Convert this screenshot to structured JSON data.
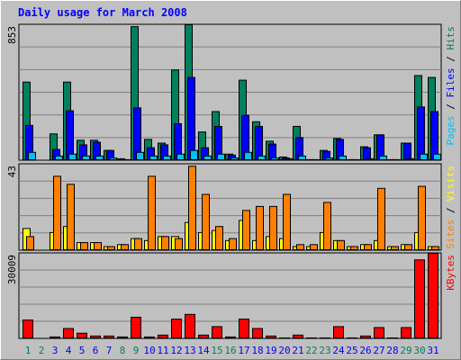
{
  "chart_data": [
    {
      "type": "bar",
      "title": "Daily usage for March 2008",
      "ylim": [
        0,
        853
      ],
      "yticks": [
        853
      ],
      "series": [
        {
          "name": "Hits",
          "color": "#00805c",
          "values": [
            493,
            0,
            168,
            493,
            128,
            128,
            64,
            12,
            841,
            133,
            110,
            569,
            853,
            180,
            308,
            41,
            505,
            244,
            122,
            23,
            215,
            6,
            64,
            139,
            6,
            87,
            162,
            6,
            110,
            534,
            522
          ]
        },
        {
          "name": "Files",
          "color": "#0000ff",
          "values": [
            221,
            0,
            70,
            313,
            99,
            116,
            64,
            6,
            331,
            81,
            99,
            232,
            522,
            81,
            215,
            35,
            284,
            215,
            104,
            17,
            145,
            6,
            58,
            133,
            6,
            81,
            162,
            6,
            110,
            337,
            308
          ]
        },
        {
          "name": "Pages",
          "color": "#00c0ff",
          "values": [
            52,
            0,
            29,
            41,
            29,
            29,
            17,
            6,
            52,
            29,
            29,
            41,
            64,
            29,
            41,
            17,
            52,
            29,
            17,
            12,
            29,
            6,
            17,
            29,
            6,
            12,
            29,
            6,
            12,
            41,
            41
          ]
        }
      ]
    },
    {
      "type": "bar",
      "ylim": [
        0,
        43
      ],
      "yticks": [
        43
      ],
      "series": [
        {
          "name": "Visits",
          "color": "#ffff00",
          "values": [
            11,
            0,
            9,
            12,
            4,
            4,
            2,
            3,
            6,
            5,
            7,
            7,
            14,
            9,
            10,
            5,
            15,
            5,
            7,
            6,
            2,
            2,
            9,
            5,
            2,
            3,
            5,
            2,
            3,
            9,
            2
          ]
        },
        {
          "name": "Sites",
          "color": "#ff8000",
          "values": [
            7,
            0,
            37,
            33,
            4,
            4,
            2,
            3,
            6,
            37,
            7,
            6,
            42,
            28,
            12,
            6,
            20,
            22,
            22,
            28,
            3,
            3,
            24,
            5,
            2,
            3,
            31,
            2,
            3,
            32,
            2
          ]
        }
      ]
    },
    {
      "type": "bar",
      "ylim": [
        0,
        30009
      ],
      "yticks": [
        30009
      ],
      "categories": [
        "1",
        "2",
        "3",
        "4",
        "5",
        "6",
        "7",
        "8",
        "9",
        "10",
        "11",
        "12",
        "13",
        "14",
        "15",
        "16",
        "17",
        "18",
        "19",
        "20",
        "21",
        "22",
        "23",
        "24",
        "25",
        "26",
        "27",
        "28",
        "29",
        "30",
        "31"
      ],
      "category_colors": [
        "#00805c",
        "#00805c",
        "#0000ff",
        "#0000ff",
        "#0000ff",
        "#0000ff",
        "#0000ff",
        "#00805c",
        "#00805c",
        "#0000ff",
        "#0000ff",
        "#0000ff",
        "#0000ff",
        "#0000ff",
        "#00805c",
        "#00805c",
        "#0000ff",
        "#0000ff",
        "#0000ff",
        "#0000ff",
        "#0000ff",
        "#00805c",
        "#00805c",
        "#0000ff",
        "#0000ff",
        "#0000ff",
        "#0000ff",
        "#0000ff",
        "#00805c",
        "#00805c",
        "#0000ff"
      ],
      "series": [
        {
          "name": "KBytes",
          "color": "#ff0000",
          "values": [
            6600,
            0,
            660,
            3630,
            1980,
            990,
            990,
            660,
            7590,
            660,
            1320,
            6930,
            8580,
            1320,
            4290,
            660,
            6930,
            3630,
            990,
            330,
            1320,
            330,
            330,
            4290,
            330,
            990,
            3960,
            330,
            3960,
            27720,
            30009
          ]
        }
      ]
    }
  ]
}
